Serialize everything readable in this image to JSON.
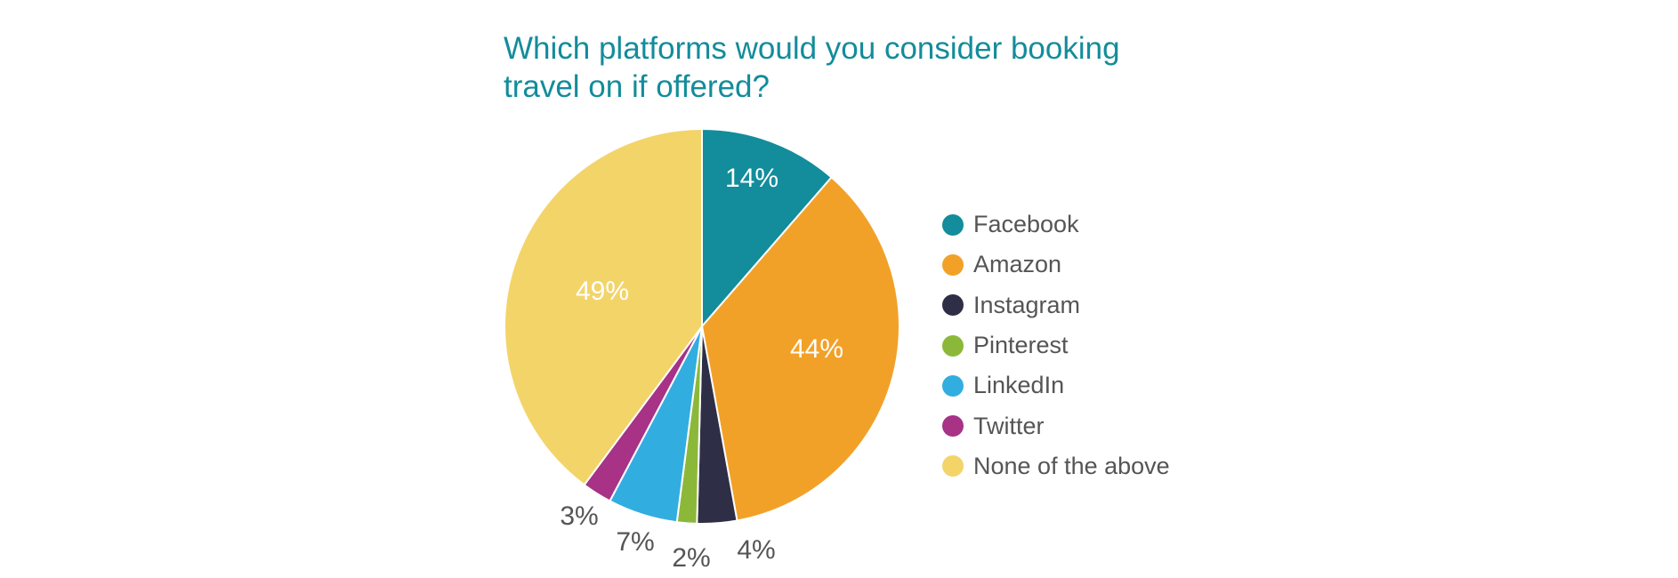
{
  "chart_data": {
    "type": "pie",
    "title": "Which platforms would you consider booking travel on if offered?",
    "slices": [
      {
        "name": "Facebook",
        "value": 14,
        "label": "14%",
        "color": "#138c9b",
        "label_inside": true
      },
      {
        "name": "Amazon",
        "value": 44,
        "label": "44%",
        "color": "#f2a128",
        "label_inside": true
      },
      {
        "name": "Instagram",
        "value": 4,
        "label": "4%",
        "color": "#2e2e47",
        "label_inside": false
      },
      {
        "name": "Pinterest",
        "value": 2,
        "label": "2%",
        "color": "#8cb83a",
        "label_inside": false
      },
      {
        "name": "LinkedIn",
        "value": 7,
        "label": "7%",
        "color": "#32ade0",
        "label_inside": false
      },
      {
        "name": "Twitter",
        "value": 3,
        "label": "3%",
        "color": "#a73286",
        "label_inside": false
      },
      {
        "name": "None of the above",
        "value": 49,
        "label": "49%",
        "color": "#f3d469",
        "label_inside": true
      }
    ],
    "legend": {
      "placement": "right",
      "entries": [
        "Facebook",
        "Amazon",
        "Instagram",
        "Pinterest",
        "LinkedIn",
        "Twitter",
        "None of the above"
      ]
    }
  }
}
